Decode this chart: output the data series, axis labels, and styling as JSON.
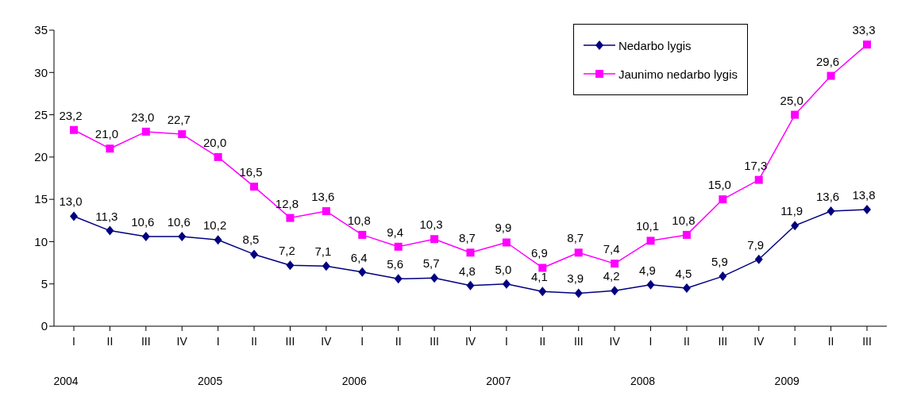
{
  "chart_data": {
    "type": "line",
    "categories": [
      "I",
      "II",
      "III",
      "IV",
      "I",
      "II",
      "III",
      "IV",
      "I",
      "II",
      "III",
      "IV",
      "I",
      "II",
      "III",
      "IV",
      "I",
      "II",
      "III",
      "IV",
      "I",
      "II",
      "III"
    ],
    "series": [
      {
        "name": "Nedarbo lygis",
        "color": "#000080",
        "marker": "diamond",
        "values": [
          13.0,
          11.3,
          10.6,
          10.6,
          10.2,
          8.5,
          7.2,
          7.1,
          6.4,
          5.6,
          5.7,
          4.8,
          5.0,
          4.1,
          3.9,
          4.2,
          4.9,
          4.5,
          5.9,
          7.9,
          11.9,
          13.6,
          13.8
        ],
        "value_labels": [
          "13,0",
          "11,3",
          "10,6",
          "10,6",
          "10,2",
          "8,5",
          "7,2",
          "7,1",
          "6,4",
          "5,6",
          "5,7",
          "4,8",
          "5,0",
          "4,1",
          "3,9",
          "4,2",
          "4,9",
          "4,5",
          "5,9",
          "7,9",
          "11,9",
          "13,6",
          "13,8"
        ]
      },
      {
        "name": "Jaunimo nedarbo lygis",
        "color": "#ff00ff",
        "marker": "square",
        "values": [
          23.2,
          21.0,
          23.0,
          22.7,
          20.0,
          16.5,
          12.8,
          13.6,
          10.8,
          9.4,
          10.3,
          8.7,
          9.9,
          6.9,
          8.7,
          7.4,
          10.1,
          10.8,
          15.0,
          17.3,
          25.0,
          29.6,
          33.3
        ],
        "value_labels": [
          "23,2",
          "21,0",
          "23,0",
          "22,7",
          "20,0",
          "16,5",
          "12,8",
          "13,6",
          "10,8",
          "9,4",
          "10,3",
          "8,7",
          "9,9",
          "6,9",
          "8,7",
          "7,4",
          "10,1",
          "10,8",
          "15,0",
          "17,3",
          "25,0",
          "29,6",
          "33,3"
        ]
      }
    ],
    "annotations": [
      "2004",
      "2005",
      "2006",
      "2007",
      "2008",
      "2009"
    ],
    "ylim": [
      0,
      35
    ],
    "yticks": [
      0,
      5,
      10,
      15,
      20,
      25,
      30,
      35
    ],
    "grid": false,
    "legend": "top right"
  }
}
